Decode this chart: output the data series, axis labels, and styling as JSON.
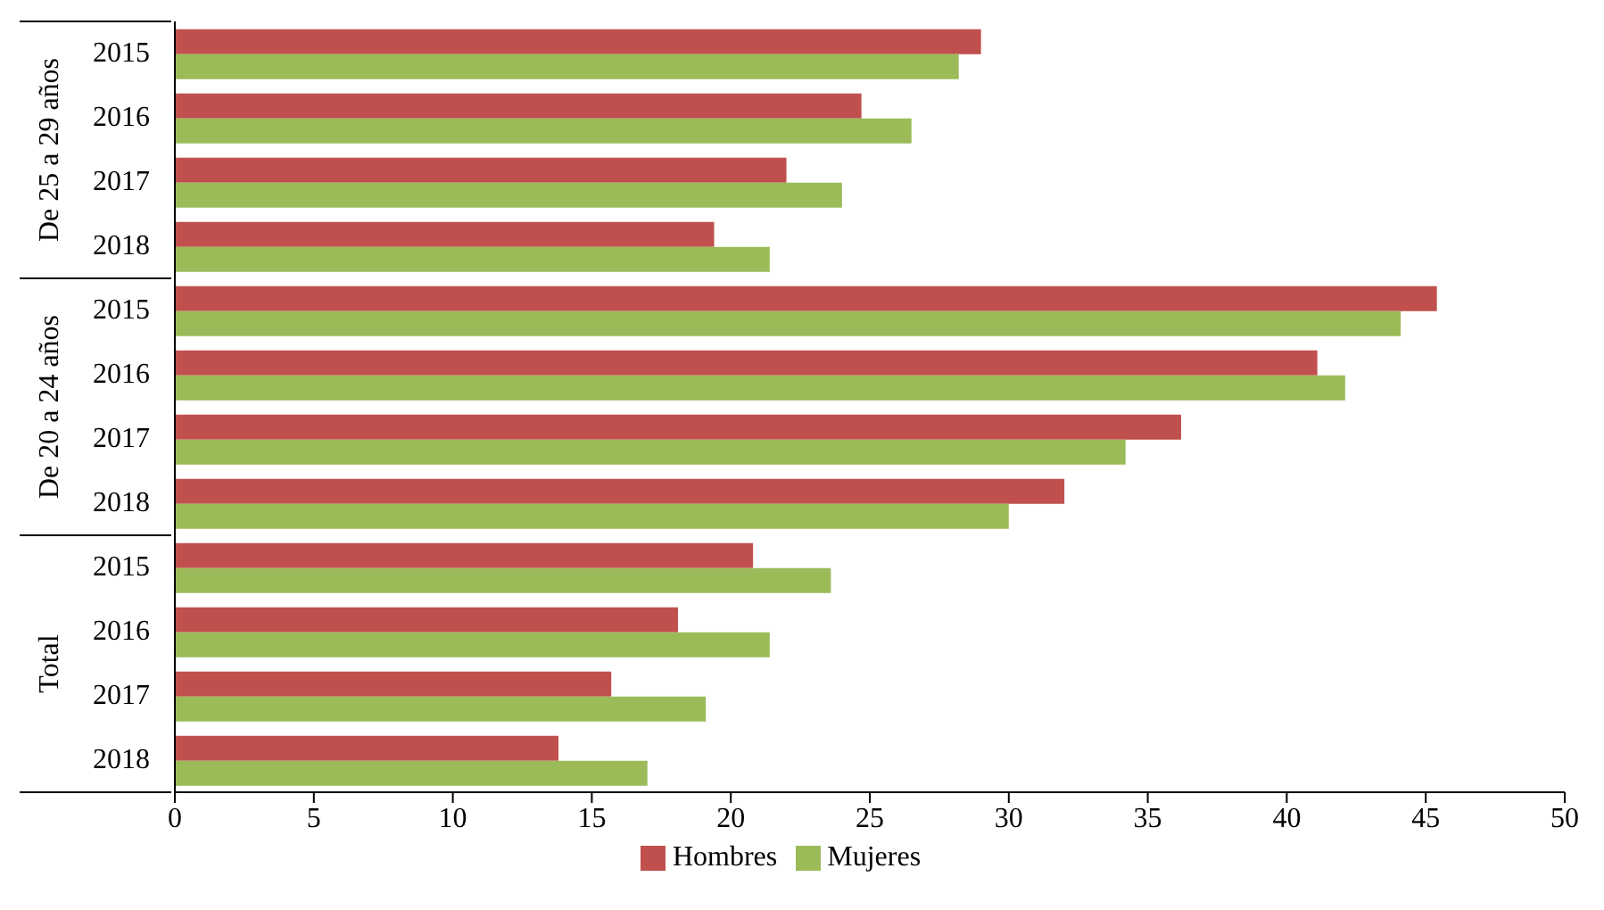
{
  "chart_data": {
    "type": "bar",
    "orientation": "horizontal",
    "categories": [
      "2015",
      "2016",
      "2017",
      "2018",
      "2015",
      "2016",
      "2017",
      "2018",
      "2015",
      "2016",
      "2017",
      "2018"
    ],
    "annotations": [
      "De 25 a 29 años",
      "De 20 a 24 años",
      "Total"
    ],
    "series": [
      {
        "name": "Hombres",
        "color": "#c0504d",
        "values": [
          29.0,
          24.7,
          22.0,
          19.4,
          45.4,
          41.1,
          36.2,
          32.0,
          20.8,
          18.1,
          15.7,
          13.8
        ]
      },
      {
        "name": "Mujeres",
        "color": "#9bbb59",
        "values": [
          28.2,
          26.5,
          24.0,
          21.4,
          44.1,
          42.1,
          34.2,
          30.0,
          23.6,
          21.4,
          19.1,
          17.0
        ]
      }
    ],
    "xlim": [
      0,
      50
    ],
    "xticks": [
      0,
      5,
      10,
      15,
      20,
      25,
      30,
      35,
      40,
      45,
      50
    ],
    "grid": false,
    "legend": "bottom"
  }
}
